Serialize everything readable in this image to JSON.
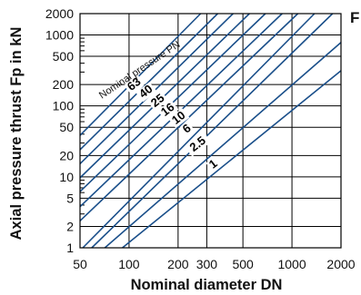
{
  "chart_data": {
    "type": "line",
    "title": "",
    "xlabel": "Nominal diameter DN",
    "ylabel": "Axial pressure thrust Fp in kN",
    "x_scale": "log",
    "y_scale": "log",
    "xlim": [
      50,
      2000
    ],
    "ylim": [
      1,
      2000
    ],
    "x_ticks": [
      50,
      100,
      200,
      300,
      500,
      1000,
      2000
    ],
    "x_tick_labels": [
      "50",
      "100",
      "200",
      "300",
      "500",
      "1000",
      "2000"
    ],
    "y_ticks": [
      1,
      2,
      5,
      10,
      20,
      50,
      100,
      200,
      500,
      1000,
      2000
    ],
    "y_tick_labels": [
      "1",
      "2",
      "5",
      "10",
      "20",
      "50",
      "100",
      "200",
      "500",
      "1000",
      "2000"
    ],
    "grid": true,
    "annotation": "Nominal pressure PN",
    "series": [
      {
        "name": "1",
        "x": [
          91,
          2000
        ],
        "y": [
          1.0,
          314
        ]
      },
      {
        "name": "2.5",
        "x": [
          71,
          2000
        ],
        "y": [
          1.0,
          785
        ]
      },
      {
        "name": "6",
        "x": [
          59,
          1775
        ],
        "y": [
          1.0,
          2000
        ]
      },
      {
        "name": "10",
        "x": [
          52,
          1375
        ],
        "y": [
          1.0,
          2000
        ]
      },
      {
        "name": "16",
        "x": [
          50,
          1087
        ],
        "y": [
          2.4,
          2000
        ]
      },
      {
        "name": "25",
        "x": [
          50,
          870
        ],
        "y": [
          3.8,
          2000
        ]
      },
      {
        "name": "40",
        "x": [
          50,
          687
        ],
        "y": [
          6.2,
          2000
        ]
      },
      {
        "name": "63",
        "x": [
          50,
          548
        ],
        "y": [
          9.7,
          2000
        ]
      },
      {
        "name": "",
        "x": [
          50,
          435
        ],
        "y": [
          15.3,
          2000
        ]
      },
      {
        "name": "",
        "x": [
          50,
          350
        ],
        "y": [
          24.1,
          2000
        ]
      },
      {
        "name": "",
        "x": [
          50,
          275
        ],
        "y": [
          38.4,
          2000
        ]
      }
    ],
    "line_color": "#1a4f8a",
    "corner_text": "F"
  }
}
